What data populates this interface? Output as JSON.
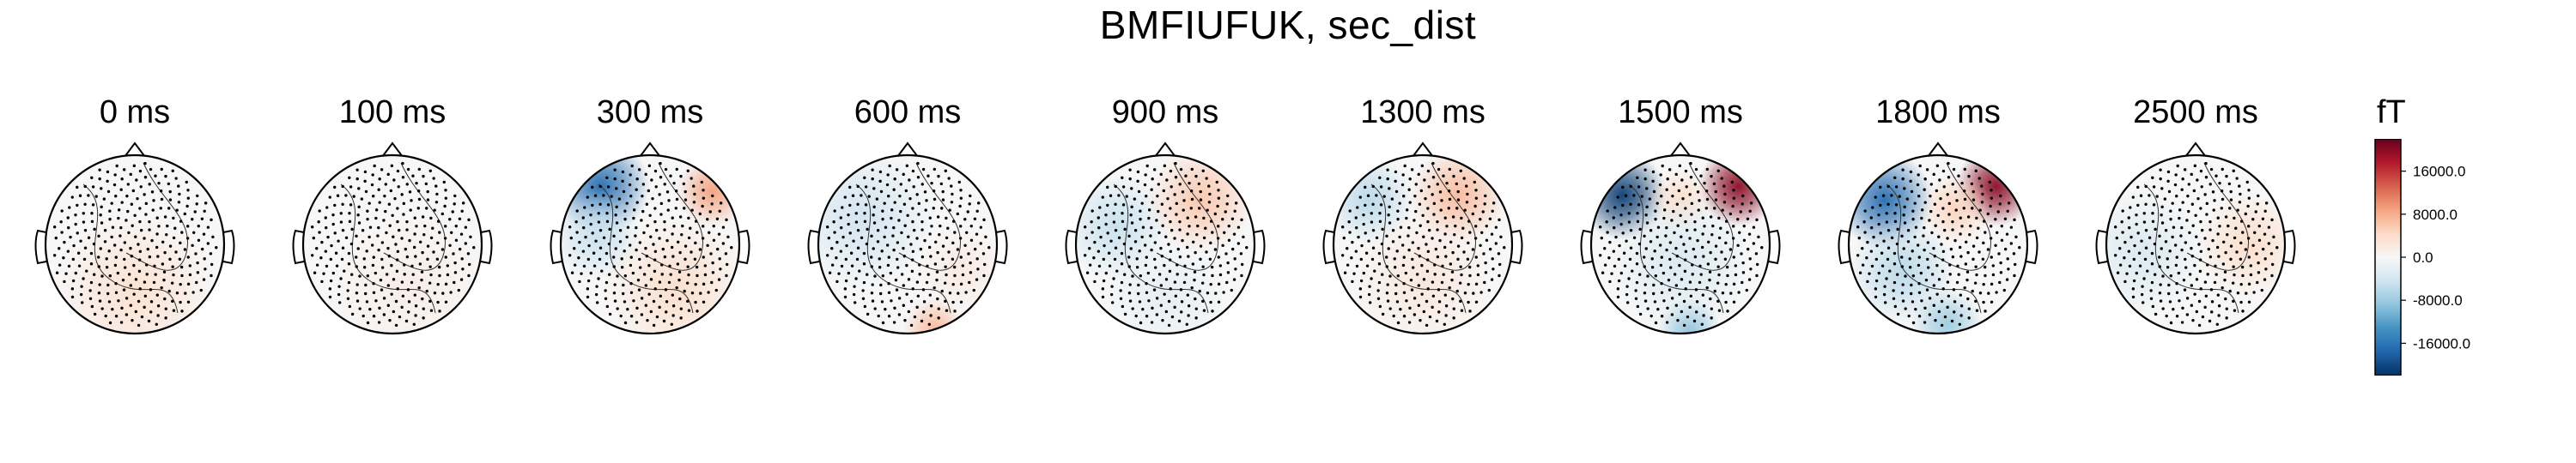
{
  "title": "BMFIUFUK, sec_dist",
  "chart_data": {
    "type": "heatmap",
    "subtype": "topomap",
    "title": "BMFIUFUK, sec_dist",
    "colormap": "RdBu_r",
    "panels": [
      {
        "label": "0 ms",
        "time_ms": 0,
        "blobs": [
          {
            "cx": 0.0,
            "cy": 0.55,
            "r": 0.9,
            "v": 3500
          }
        ]
      },
      {
        "label": "100 ms",
        "time_ms": 100,
        "blobs": [
          {
            "cx": 0.2,
            "cy": 0.5,
            "r": 0.9,
            "v": 1500
          }
        ]
      },
      {
        "label": "300 ms",
        "time_ms": 300,
        "blobs": [
          {
            "cx": -0.55,
            "cy": -0.65,
            "r": 0.55,
            "v": -17000
          },
          {
            "cx": -0.6,
            "cy": -0.1,
            "r": 0.5,
            "v": -5000
          },
          {
            "cx": 0.7,
            "cy": -0.6,
            "r": 0.4,
            "v": 9000
          },
          {
            "cx": 0.3,
            "cy": 0.5,
            "r": 0.8,
            "v": 4000
          }
        ]
      },
      {
        "label": "600 ms",
        "time_ms": 600,
        "blobs": [
          {
            "cx": -0.5,
            "cy": -0.3,
            "r": 0.8,
            "v": -4500
          },
          {
            "cx": 0.3,
            "cy": 0.95,
            "r": 0.35,
            "v": 7000
          },
          {
            "cx": 0.6,
            "cy": 0.3,
            "r": 0.5,
            "v": 2000
          }
        ]
      },
      {
        "label": "900 ms",
        "time_ms": 900,
        "blobs": [
          {
            "cx": -0.55,
            "cy": -0.2,
            "r": 0.6,
            "v": -5000
          },
          {
            "cx": 0.4,
            "cy": -0.5,
            "r": 0.6,
            "v": 6000
          },
          {
            "cx": 0.0,
            "cy": 0.6,
            "r": 0.7,
            "v": -2000
          }
        ]
      },
      {
        "label": "1300 ms",
        "time_ms": 1300,
        "blobs": [
          {
            "cx": -0.6,
            "cy": -0.5,
            "r": 0.5,
            "v": -6000
          },
          {
            "cx": 0.4,
            "cy": -0.55,
            "r": 0.55,
            "v": 7000
          },
          {
            "cx": 0.0,
            "cy": 0.4,
            "r": 0.8,
            "v": 2500
          }
        ]
      },
      {
        "label": "1500 ms",
        "time_ms": 1500,
        "blobs": [
          {
            "cx": -0.65,
            "cy": -0.55,
            "r": 0.5,
            "v": -21000
          },
          {
            "cx": 0.65,
            "cy": -0.65,
            "r": 0.45,
            "v": 20000
          },
          {
            "cx": 0.0,
            "cy": -0.5,
            "r": 0.35,
            "v": 4000
          },
          {
            "cx": 0.1,
            "cy": 0.95,
            "r": 0.35,
            "v": -9000
          },
          {
            "cx": 0.0,
            "cy": 0.2,
            "r": 0.8,
            "v": -3500
          }
        ]
      },
      {
        "label": "1800 ms",
        "time_ms": 1800,
        "blobs": [
          {
            "cx": -0.6,
            "cy": -0.5,
            "r": 0.55,
            "v": -17000
          },
          {
            "cx": 0.65,
            "cy": -0.65,
            "r": 0.45,
            "v": 20000
          },
          {
            "cx": -0.4,
            "cy": 0.3,
            "r": 0.6,
            "v": -6000
          },
          {
            "cx": 0.1,
            "cy": 0.9,
            "r": 0.4,
            "v": -8000
          },
          {
            "cx": 0.2,
            "cy": -0.4,
            "r": 0.4,
            "v": 5000
          }
        ]
      },
      {
        "label": "2500 ms",
        "time_ms": 2500,
        "blobs": [
          {
            "cx": -0.6,
            "cy": 0.1,
            "r": 0.7,
            "v": -3500
          },
          {
            "cx": 0.6,
            "cy": 0.0,
            "r": 0.6,
            "v": 4000
          }
        ]
      }
    ],
    "colorbar": {
      "unit": "fT",
      "min": -22000,
      "max": 22000,
      "ticks": [
        16000.0,
        8000.0,
        0.0,
        -8000.0,
        -16000.0
      ],
      "tick_labels": [
        "16000.0",
        "8000.0",
        "0.0",
        "-8000.0",
        "-16000.0"
      ]
    }
  }
}
